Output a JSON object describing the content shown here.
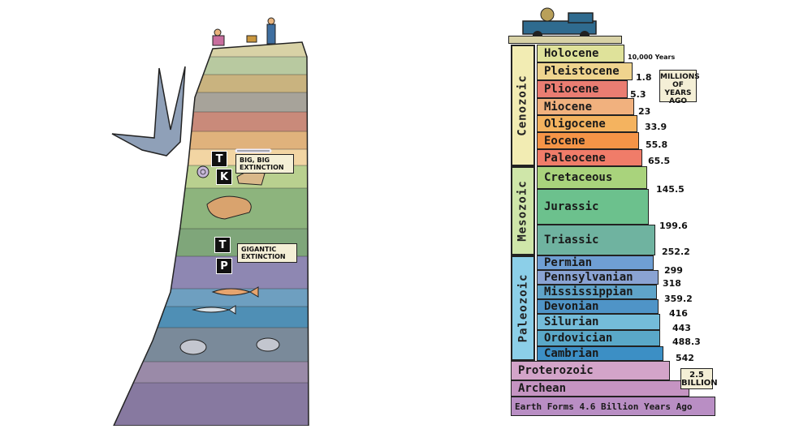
{
  "left_panel": {
    "tags": [
      "T",
      "K",
      "T",
      "P"
    ],
    "notes": {
      "kt": "Big, Big Extinction",
      "pt": "Gigantic Extinction"
    },
    "icons": [
      "pterosaur-icon",
      "dinosaur-skull-icon",
      "trilobite-icon",
      "ammonite-icon",
      "fish-fossil-icon",
      "paleontologist-icon"
    ]
  },
  "right_panel": {
    "eras": [
      "Cenozoic",
      "Mesozoic",
      "Paleozoic"
    ],
    "periods": [
      {
        "name": "Holocene",
        "color": "#dfe29a"
      },
      {
        "name": "Pleistocene",
        "color": "#efd48e"
      },
      {
        "name": "Pliocene",
        "color": "#ea7d72"
      },
      {
        "name": "Miocene",
        "color": "#f1b17e"
      },
      {
        "name": "Oligocene",
        "color": "#f4b35f"
      },
      {
        "name": "Eocene",
        "color": "#f59447"
      },
      {
        "name": "Paleocene",
        "color": "#f07c69"
      },
      {
        "name": "Cretaceous",
        "color": "#a9d37c"
      },
      {
        "name": "Jurassic",
        "color": "#6cc18d"
      },
      {
        "name": "Triassic",
        "color": "#6fb3a0"
      },
      {
        "name": "Permian",
        "color": "#6f9fd4"
      },
      {
        "name": "Pennsylvanian",
        "color": "#8aa3d3"
      },
      {
        "name": "Mississippian",
        "color": "#5fa4c9"
      },
      {
        "name": "Devonian",
        "color": "#4f94c7"
      },
      {
        "name": "Silurian",
        "color": "#74bcd9"
      },
      {
        "name": "Ordovician",
        "color": "#5aa8c8"
      },
      {
        "name": "Cambrian",
        "color": "#3c8fc5"
      },
      {
        "name": "Proterozoic",
        "color": "#d3a4c9"
      },
      {
        "name": "Archean",
        "color": "#c594c2"
      }
    ],
    "ages": [
      "10,000 Years",
      "1.8",
      "5.3",
      "23",
      "33.9",
      "55.8",
      "65.5",
      "145.5",
      "199.6",
      "252.2",
      "299",
      "318",
      "359.2",
      "416",
      "443",
      "488.3",
      "542"
    ],
    "millions_label": "Millions of Years Ago",
    "billion_label": "2.5 Billion",
    "earth_forms": "Earth Forms 4.6 Billion Years Ago"
  }
}
